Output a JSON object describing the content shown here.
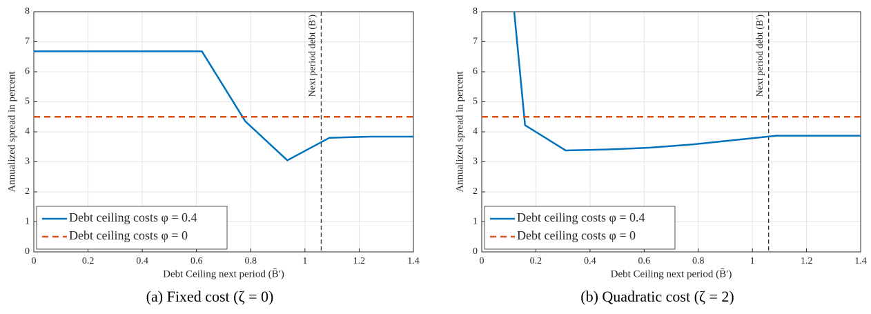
{
  "chart_data": [
    {
      "type": "line",
      "caption": "(a) Fixed cost (ζ = 0)",
      "x_label": "Debt Ceiling next period (B̄′)",
      "y_label": "Annualized spread in percent",
      "series": [
        {
          "name": "Debt ceiling costs φ = 0.4",
          "color": "#0072bd",
          "style": "solid",
          "x": [
            0,
            0.62,
            0.78,
            0.935,
            1.09,
            1.24,
            1.4
          ],
          "values": [
            6.68,
            6.68,
            4.35,
            3.05,
            3.8,
            3.84,
            3.84
          ]
        },
        {
          "name": "Debt ceiling costs φ = 0",
          "color": "#d95319",
          "style": "dashed",
          "x": [
            0,
            1.4
          ],
          "values": [
            4.5,
            4.5
          ]
        }
      ],
      "vline": {
        "x": 1.06,
        "label": "Next period debt (B′)"
      },
      "xlim": [
        0,
        1.4
      ],
      "ylim": [
        0,
        8
      ],
      "xticks": [
        0,
        0.2,
        0.4,
        0.6,
        0.8,
        1,
        1.2,
        1.4
      ],
      "yticks": [
        0,
        1,
        2,
        3,
        4,
        5,
        6,
        7,
        8
      ],
      "grid": true,
      "legend": "lower-left"
    },
    {
      "type": "line",
      "caption": "(b) Quadratic cost (ζ = 2)",
      "x_label": "Debt Ceiling next period (B̄′)",
      "y_label": "Annualized spread in percent",
      "series": [
        {
          "name": "Debt ceiling costs φ = 0.4",
          "color": "#0072bd",
          "style": "solid",
          "x": [
            0.12,
            0.16,
            0.31,
            0.46,
            0.62,
            0.78,
            0.93,
            1.09,
            1.24,
            1.4
          ],
          "values": [
            8,
            4.22,
            3.38,
            3.41,
            3.47,
            3.58,
            3.72,
            3.87,
            3.87,
            3.87
          ]
        },
        {
          "name": "Debt ceiling costs φ = 0",
          "color": "#d95319",
          "style": "dashed",
          "x": [
            0,
            1.4
          ],
          "values": [
            4.5,
            4.5
          ]
        }
      ],
      "vline": {
        "x": 1.06,
        "label": "Next period debt (B′)"
      },
      "xlim": [
        0,
        1.4
      ],
      "ylim": [
        0,
        8
      ],
      "xticks": [
        0,
        0.2,
        0.4,
        0.6,
        0.8,
        1,
        1.2,
        1.4
      ],
      "yticks": [
        0,
        1,
        2,
        3,
        4,
        5,
        6,
        7,
        8
      ],
      "grid": true,
      "legend": "lower-left"
    }
  ]
}
